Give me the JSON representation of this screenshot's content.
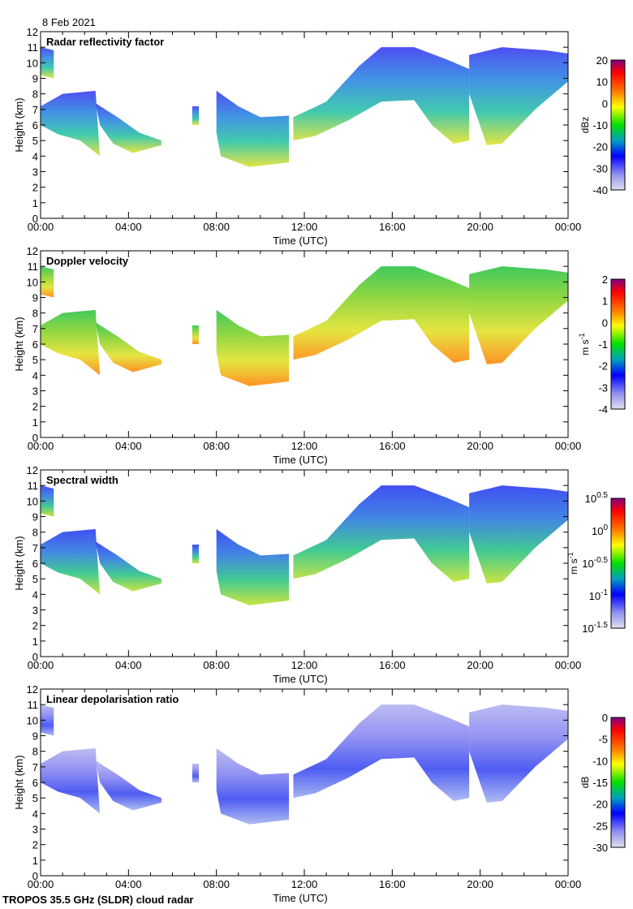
{
  "date": "8 Feb 2021",
  "footer": "TROPOS 35.5 GHz (SLDR) cloud radar",
  "chart_data": [
    {
      "type": "heatmap",
      "title": "Radar reflectivity factor",
      "xlabel": "Time (UTC)",
      "ylabel": "Height (km)",
      "xlim": [
        0,
        24
      ],
      "ylim": [
        0,
        12
      ],
      "xticks": [
        "00:00",
        "04:00",
        "08:00",
        "12:00",
        "16:00",
        "20:00",
        "00:00"
      ],
      "yticks": [
        "0",
        "1",
        "2",
        "3",
        "4",
        "5",
        "6",
        "7",
        "8",
        "9",
        "10",
        "11",
        "12"
      ],
      "colorbar": {
        "label": "dBz",
        "ticks": [
          "20",
          "10",
          "0",
          "-10",
          "-20",
          "-30",
          "-40"
        ],
        "range": [
          -40,
          20
        ]
      },
      "fill": [
        "#3030f0",
        "#2080e0",
        "#20c0a0",
        "#e0e020"
      ],
      "style": "refl"
    },
    {
      "type": "heatmap",
      "title": "Doppler velocity",
      "xlabel": "Time (UTC)",
      "ylabel": "Height (km)",
      "xlim": [
        0,
        24
      ],
      "ylim": [
        0,
        12
      ],
      "xticks": [
        "00:00",
        "04:00",
        "08:00",
        "12:00",
        "16:00",
        "20:00",
        "00:00"
      ],
      "yticks": [
        "0",
        "1",
        "2",
        "3",
        "4",
        "5",
        "6",
        "7",
        "8",
        "9",
        "10",
        "11",
        "12"
      ],
      "colorbar": {
        "label": "m s-1",
        "ticks": [
          "2",
          "1",
          "0",
          "-1",
          "-2",
          "-3",
          "-4"
        ],
        "range": [
          -4,
          2
        ]
      },
      "fill": [
        "#20c040",
        "#80d020",
        "#e0e020",
        "#ff8000"
      ],
      "style": "vel"
    },
    {
      "type": "heatmap",
      "title": "Spectral width",
      "xlabel": "Time (UTC)",
      "ylabel": "Height (km)",
      "xlim": [
        0,
        24
      ],
      "ylim": [
        0,
        12
      ],
      "xticks": [
        "00:00",
        "04:00",
        "08:00",
        "12:00",
        "16:00",
        "20:00",
        "00:00"
      ],
      "yticks": [
        "0",
        "1",
        "2",
        "3",
        "4",
        "5",
        "6",
        "7",
        "8",
        "9",
        "10",
        "11",
        "12"
      ],
      "colorbar": {
        "label": "m s-1",
        "ticks": [
          "10^0.5",
          "10^0",
          "10^-0.5",
          "10^-1",
          "10^-1.5"
        ],
        "range": [
          -1.5,
          0.5
        ]
      },
      "fill": [
        "#2030f0",
        "#2070e0",
        "#20c080",
        "#c0e020"
      ],
      "style": "sw"
    },
    {
      "type": "heatmap",
      "title": "Linear depolarisation ratio",
      "xlabel": "Time (UTC)",
      "ylabel": "Height (km)",
      "xlim": [
        0,
        24
      ],
      "ylim": [
        0,
        12
      ],
      "xticks": [
        "00:00",
        "04:00",
        "08:00",
        "12:00",
        "16:00",
        "20:00",
        "00:00"
      ],
      "yticks": [
        "0",
        "1",
        "2",
        "3",
        "4",
        "5",
        "6",
        "7",
        "8",
        "9",
        "10",
        "11",
        "12"
      ],
      "colorbar": {
        "label": "dB",
        "ticks": [
          "0",
          "-5",
          "-10",
          "-15",
          "-20",
          "-25",
          "-30"
        ],
        "range": [
          -30,
          0
        ]
      },
      "fill": [
        "#b0b0f0",
        "#8080f0",
        "#3040f0",
        "#a0b0f0"
      ],
      "style": "ldr"
    }
  ],
  "cloud_regions_time_h_height_km": [
    [
      [
        0,
        11
      ],
      [
        0.6,
        10.8
      ],
      [
        0.6,
        9
      ],
      [
        0,
        9.2
      ]
    ],
    [
      [
        0,
        7.2
      ],
      [
        1,
        8
      ],
      [
        2.5,
        8.2
      ],
      [
        2.7,
        4
      ],
      [
        1.8,
        5
      ],
      [
        0.8,
        5.4
      ],
      [
        0,
        6
      ]
    ],
    [
      [
        2.5,
        7.4
      ],
      [
        3.5,
        6.5
      ],
      [
        4.5,
        5.5
      ],
      [
        5.5,
        5
      ],
      [
        5.5,
        4.7
      ],
      [
        4.2,
        4.2
      ],
      [
        3.3,
        4.8
      ],
      [
        2.7,
        6
      ]
    ],
    [
      [
        6.9,
        7.2
      ],
      [
        7.2,
        7.2
      ],
      [
        7.2,
        6
      ],
      [
        6.9,
        6
      ]
    ],
    [
      [
        8,
        8.2
      ],
      [
        9,
        7.2
      ],
      [
        10,
        6.5
      ],
      [
        11.3,
        6.6
      ],
      [
        11.3,
        3.6
      ],
      [
        9.5,
        3.3
      ],
      [
        8.2,
        4
      ],
      [
        8,
        5.5
      ]
    ],
    [
      [
        11.5,
        6.5
      ],
      [
        13,
        7.5
      ],
      [
        14.5,
        9.8
      ],
      [
        15.5,
        11
      ],
      [
        17,
        11
      ],
      [
        18.5,
        10.2
      ],
      [
        19.5,
        9.6
      ],
      [
        19.5,
        5
      ],
      [
        18.8,
        4.8
      ],
      [
        17.8,
        6
      ],
      [
        17,
        7.6
      ],
      [
        15.5,
        7.5
      ],
      [
        14,
        6.3
      ],
      [
        12.5,
        5.3
      ],
      [
        11.5,
        5
      ]
    ],
    [
      [
        19.5,
        10.5
      ],
      [
        21,
        11
      ],
      [
        23,
        10.8
      ],
      [
        24,
        10.6
      ],
      [
        24,
        8.8
      ],
      [
        22.5,
        7
      ],
      [
        21,
        4.8
      ],
      [
        20.3,
        4.7
      ],
      [
        19.5,
        8
      ]
    ]
  ]
}
